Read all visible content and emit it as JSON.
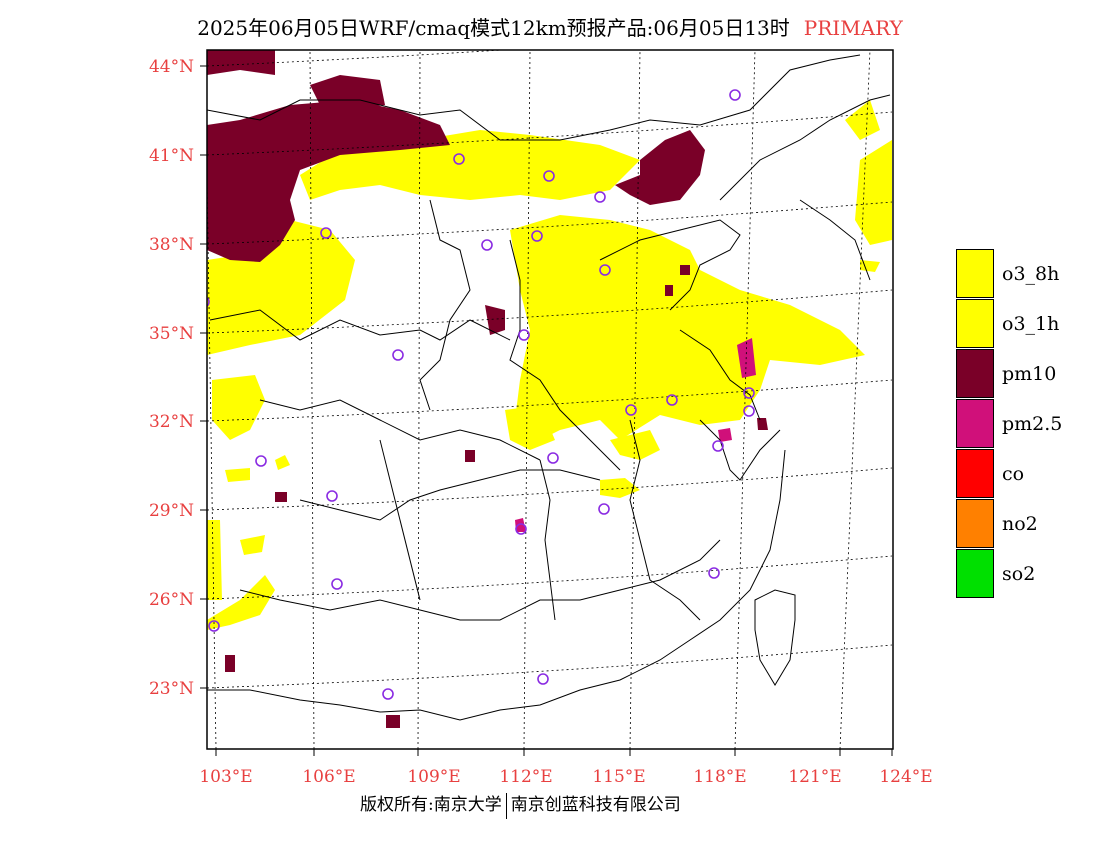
{
  "title": {
    "main": "2025年06月05日WRF/cmaq模式12km预报产品:06月05日13时",
    "tag": "PRIMARY"
  },
  "colors": {
    "label_red": "#e84040",
    "o3": "#ffff00",
    "pm10": "#7a0028",
    "pm25": "#d0107a",
    "co": "#ff0000",
    "no2": "#ff8000",
    "so2": "#00e000",
    "station": "#8a2be2"
  },
  "lat_labels": [
    "44°N",
    "41°N",
    "38°N",
    "35°N",
    "32°N",
    "29°N",
    "26°N",
    "23°N"
  ],
  "lon_labels": [
    "103°E",
    "106°E",
    "109°E",
    "112°E",
    "115°E",
    "118°E",
    "121°E",
    "124°E"
  ],
  "legend": [
    {
      "label": "o3_8h",
      "color": "#ffff00"
    },
    {
      "label": "o3_1h",
      "color": "#ffff00"
    },
    {
      "label": "pm10",
      "color": "#7a0028"
    },
    {
      "label": "pm2.5",
      "color": "#d0107a"
    },
    {
      "label": "co",
      "color": "#ff0000"
    },
    {
      "label": "no2",
      "color": "#ff8000"
    },
    {
      "label": "so2",
      "color": "#00e000"
    }
  ],
  "footer": {
    "left": "版权所有:南京大学",
    "right": "南京创蓝科技有限公司"
  }
}
